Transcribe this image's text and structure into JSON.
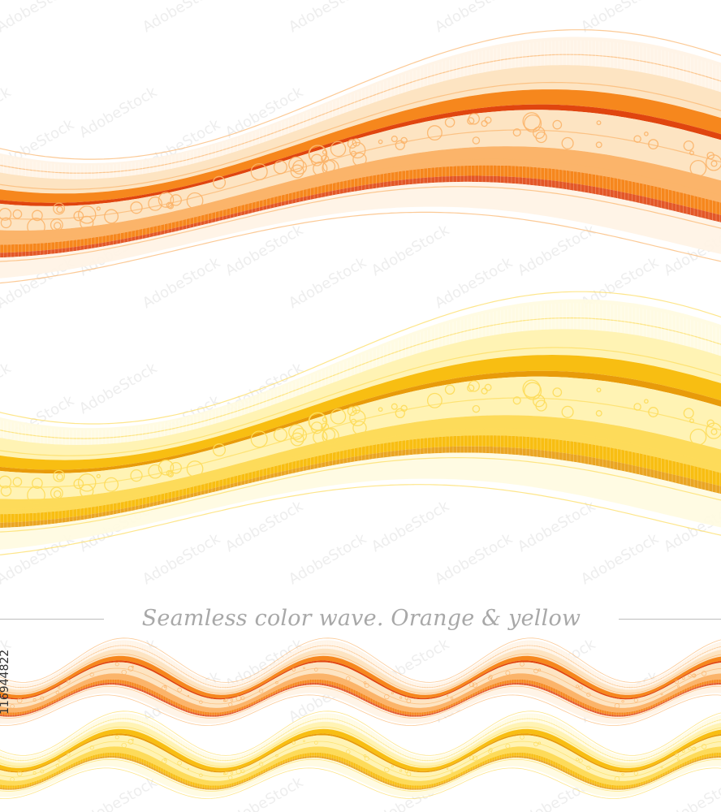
{
  "caption": "Seamless color wave. Orange & yellow",
  "stock_id": "116944822",
  "palettes": {
    "orange": {
      "light": "#fde3bf",
      "mid": "#fbb46a",
      "strong": "#f6871d",
      "dark": "#e0450f",
      "pale": "#fff3e4"
    },
    "yellow": {
      "light": "#fff2b0",
      "mid": "#fddb5a",
      "strong": "#f8be12",
      "dark": "#e89b0a",
      "pale": "#fffbe0"
    }
  },
  "watermark": {
    "text": "AdobeStock",
    "color": "#eeeeee"
  }
}
